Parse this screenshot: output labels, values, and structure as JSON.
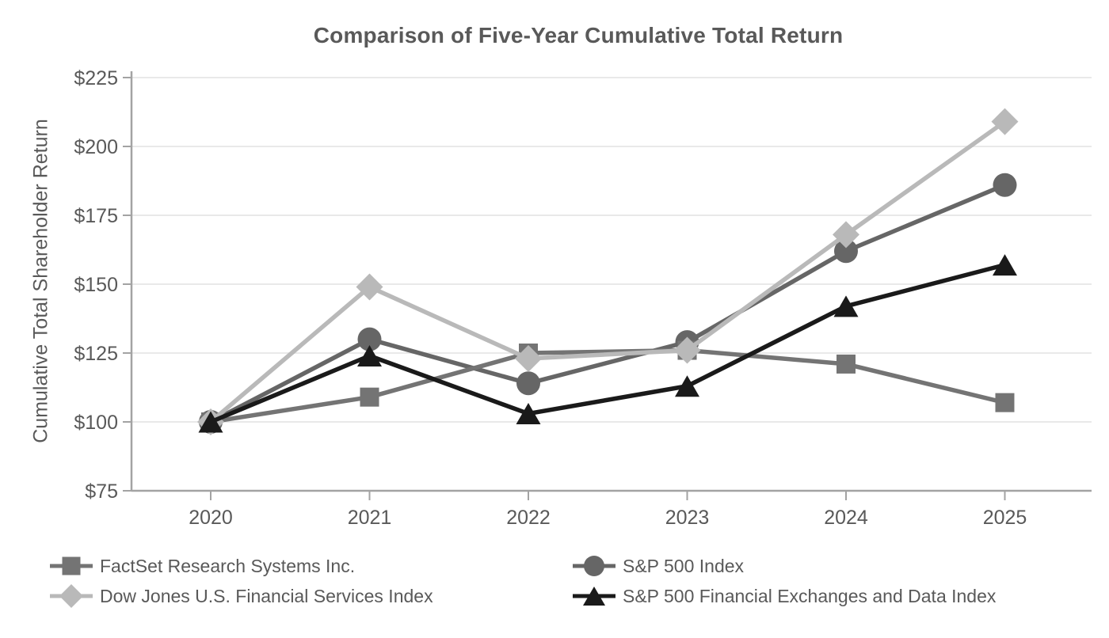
{
  "chart_data": {
    "type": "line",
    "title": "Comparison of Five-Year Cumulative Total Return",
    "xlabel": "",
    "ylabel": "Cumulative Total Shareholder Return",
    "categories": [
      "2020",
      "2021",
      "2022",
      "2023",
      "2024",
      "2025"
    ],
    "ylim": [
      75,
      225
    ],
    "y_ticks": [
      75,
      100,
      125,
      150,
      175,
      200,
      225
    ],
    "y_tick_labels": [
      "$75",
      "$100",
      "$125",
      "$150",
      "$175",
      "$200",
      "$225"
    ],
    "grid": "horizontal",
    "legend_position": "bottom",
    "series": [
      {
        "name": "FactSet Research Systems Inc.",
        "marker": "square",
        "color": "#747474",
        "values": [
          100,
          109,
          125,
          126,
          121,
          107
        ]
      },
      {
        "name": "S&P 500 Index",
        "marker": "circle",
        "color": "#666666",
        "values": [
          100,
          130,
          114,
          129,
          162,
          186
        ]
      },
      {
        "name": "Dow Jones U.S. Financial Services Index",
        "marker": "diamond",
        "color": "#b9b9b9",
        "values": [
          100,
          149,
          123,
          126,
          168,
          209
        ]
      },
      {
        "name": "S&P 500 Financial Exchanges and Data Index",
        "marker": "triangle",
        "color": "#1a1a1a",
        "values": [
          100,
          124,
          103,
          113,
          142,
          157
        ]
      }
    ],
    "draw_order": [
      1,
      0,
      2,
      3
    ],
    "colors": {
      "axis": "#a3a3a3",
      "grid": "#e9e9e9",
      "text": "#595959",
      "title": "#595959"
    }
  }
}
